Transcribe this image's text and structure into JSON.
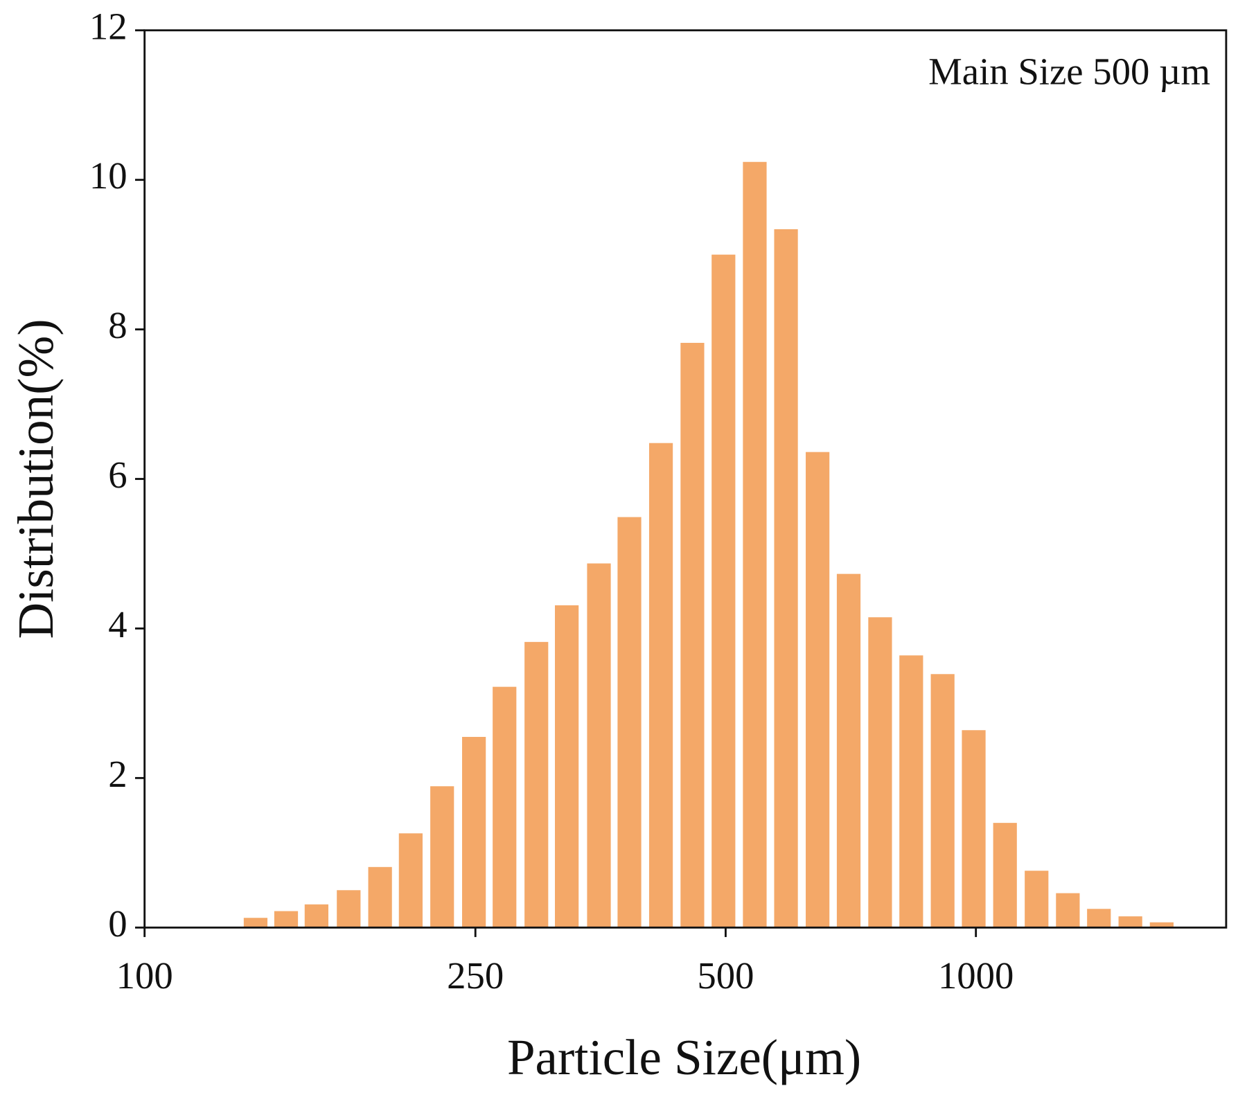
{
  "chart_data": {
    "type": "bar",
    "x_label": "Particle Size(μm)",
    "y_label": "Distribution(%)",
    "annotation": "Main Size 500 µm",
    "x": [
      136,
      148,
      161,
      176,
      192,
      209,
      228,
      249,
      271,
      296,
      322,
      352,
      383,
      418,
      456,
      497,
      542,
      591,
      645,
      703,
      767,
      836,
      912,
      994,
      1084,
      1183,
      1290,
      1406,
      1534,
      1673
    ],
    "values": [
      0.13,
      0.22,
      0.31,
      0.5,
      0.81,
      1.26,
      1.89,
      2.55,
      3.22,
      3.82,
      4.31,
      4.87,
      5.49,
      6.48,
      7.82,
      9.0,
      10.24,
      9.34,
      6.36,
      4.73,
      4.15,
      3.64,
      3.39,
      2.64,
      1.4,
      0.76,
      0.46,
      0.25,
      0.15,
      0.07
    ],
    "color": "#f4a868",
    "xscale": "log",
    "xlim": [
      100,
      2000
    ],
    "xticks": [
      100,
      250,
      500,
      1000
    ],
    "ylim": [
      0,
      12
    ],
    "yticks": [
      0,
      2,
      4,
      6,
      8,
      10,
      12
    ],
    "grid": false
  }
}
